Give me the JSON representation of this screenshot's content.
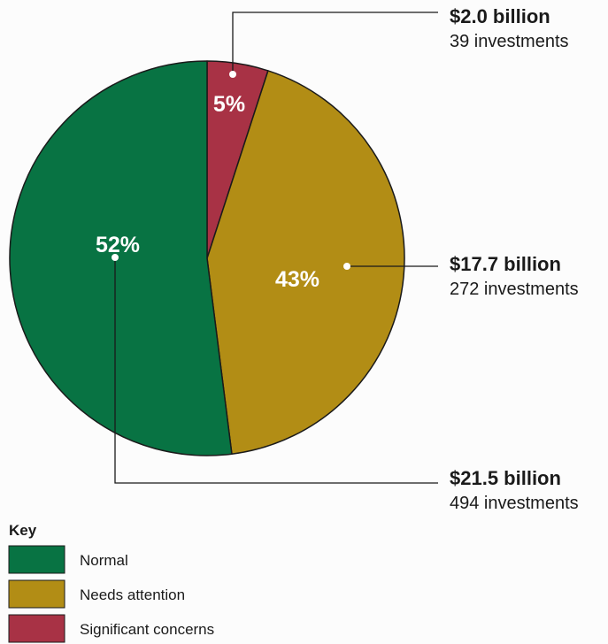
{
  "chart_data": {
    "type": "pie",
    "slices": [
      {
        "label": "Significant concerns",
        "percent": 5,
        "percent_label": "5%",
        "amount": "$2.0 billion",
        "investments": "39 investments",
        "color": "#a83245"
      },
      {
        "label": "Needs attention",
        "percent": 43,
        "percent_label": "43%",
        "amount": "$17.7 billion",
        "investments": "272 investments",
        "color": "#b28d15"
      },
      {
        "label": "Normal",
        "percent": 52,
        "percent_label": "52%",
        "amount": "$21.5 billion",
        "investments": "494 investments",
        "color": "#087343"
      }
    ],
    "legend": {
      "title": "Key",
      "placement": "bottom-left"
    }
  }
}
